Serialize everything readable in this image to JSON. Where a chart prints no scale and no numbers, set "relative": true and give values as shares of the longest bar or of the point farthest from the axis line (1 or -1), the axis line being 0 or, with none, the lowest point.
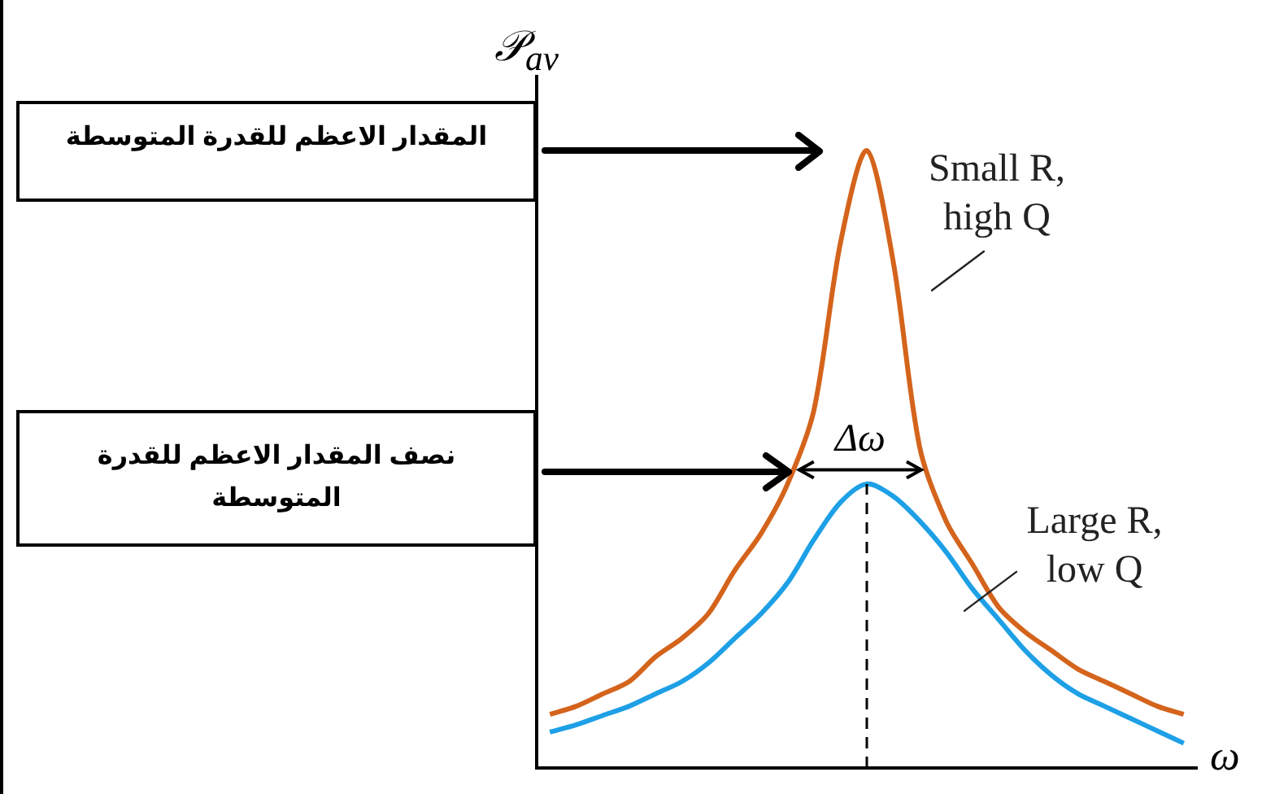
{
  "chart_data": {
    "type": "line",
    "relative": true,
    "xlabel": "ω",
    "ylabel": "𝒫$_{av}$",
    "categories": [
      null,
      null,
      null,
      null,
      null,
      null,
      null,
      null,
      null,
      null,
      null,
      null,
      null,
      null,
      null,
      null,
      null,
      null,
      null,
      null,
      null,
      null,
      null,
      null,
      null
    ],
    "series": [
      {
        "name": "Small R, high Q",
        "color": "#d4641c",
        "values": [
          0.087,
          0.1,
          0.12,
          0.14,
          0.18,
          0.21,
          0.25,
          0.32,
          0.38,
          0.46,
          0.58,
          0.85,
          1,
          0.82,
          0.52,
          0.4,
          0.33,
          0.26,
          0.22,
          0.19,
          0.16,
          0.14,
          0.12,
          0.1,
          0.087
        ]
      },
      {
        "name": "Large R, low Q",
        "color": "#1ea0e6",
        "values": [
          0.058,
          0.07,
          0.085,
          0.1,
          0.12,
          0.14,
          0.17,
          0.21,
          0.25,
          0.3,
          0.37,
          0.43,
          0.46,
          0.44,
          0.4,
          0.35,
          0.29,
          0.24,
          0.19,
          0.15,
          0.12,
          0.1,
          0.08,
          0.06,
          0.04
        ]
      }
    ],
    "ref_lines": [
      {
        "axis": "y",
        "value": 1,
        "label": "المقدار الاعظم للقدرة المتوسطة"
      }
    ],
    "annotations": [
      "نصف المقدار الاعظم للقدرة المتوسطة",
      "Δω"
    ],
    "legend": false,
    "grid": false,
    "marker": "none",
    "line_style": "solid"
  }
}
